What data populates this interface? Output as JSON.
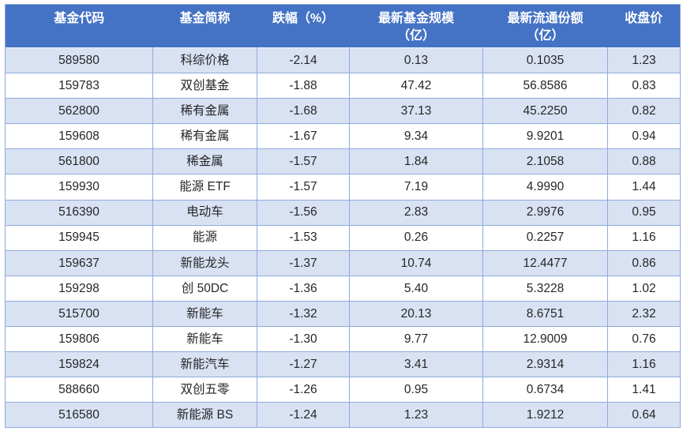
{
  "colors": {
    "header_bg": "#4472C4",
    "header_text": "#FFFFFF",
    "band_row_bg": "#D9E2F3",
    "plain_row_bg": "#FFFFFF",
    "border": "#8EAADB",
    "body_text": "#262626"
  },
  "chart_data": {
    "type": "table",
    "columns": [
      {
        "line1": "基金代码",
        "line2": ""
      },
      {
        "line1": "基金简称",
        "line2": ""
      },
      {
        "line1": "跌幅（%）",
        "line2": ""
      },
      {
        "line1": "最新基金规模",
        "line2": "（亿）"
      },
      {
        "line1": "最新流通份额",
        "line2": "（亿）"
      },
      {
        "line1": "收盘价",
        "line2": ""
      }
    ],
    "column_names": [
      "基金代码",
      "基金简称",
      "跌幅（%）",
      "最新基金规模（亿）",
      "最新流通份额（亿）",
      "收盘价"
    ],
    "rows": [
      [
        "589580",
        "科综价格",
        "-2.14",
        "0.13",
        "0.1035",
        "1.23"
      ],
      [
        "159783",
        "双创基金",
        "-1.88",
        "47.42",
        "56.8586",
        "0.83"
      ],
      [
        "562800",
        "稀有金属",
        "-1.68",
        "37.13",
        "45.2250",
        "0.82"
      ],
      [
        "159608",
        "稀有金属",
        "-1.67",
        "9.34",
        "9.9201",
        "0.94"
      ],
      [
        "561800",
        "稀金属",
        "-1.57",
        "1.84",
        "2.1058",
        "0.88"
      ],
      [
        "159930",
        "能源 ETF",
        "-1.57",
        "7.19",
        "4.9990",
        "1.44"
      ],
      [
        "516390",
        "电动车",
        "-1.56",
        "2.83",
        "2.9976",
        "0.95"
      ],
      [
        "159945",
        "能源",
        "-1.53",
        "0.26",
        "0.2257",
        "1.16"
      ],
      [
        "159637",
        "新能龙头",
        "-1.37",
        "10.74",
        "12.4477",
        "0.86"
      ],
      [
        "159298",
        "创 50DC",
        "-1.36",
        "5.40",
        "5.3228",
        "1.02"
      ],
      [
        "515700",
        "新能车",
        "-1.32",
        "20.13",
        "8.6751",
        "2.32"
      ],
      [
        "159806",
        "新能车",
        "-1.30",
        "9.77",
        "12.9009",
        "0.76"
      ],
      [
        "159824",
        "新能汽车",
        "-1.27",
        "3.41",
        "2.9314",
        "1.16"
      ],
      [
        "588660",
        "双创五零",
        "-1.26",
        "0.95",
        "0.6734",
        "1.41"
      ],
      [
        "516580",
        "新能源 BS",
        "-1.24",
        "1.23",
        "1.9212",
        "0.64"
      ]
    ]
  }
}
